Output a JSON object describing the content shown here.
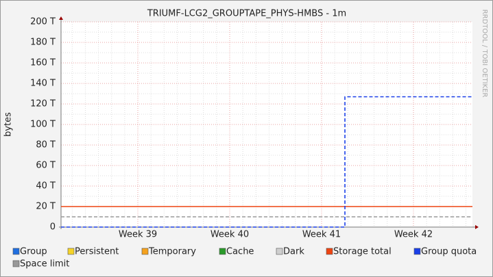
{
  "chart_data": {
    "type": "line",
    "title": "TRIUMF-LCG2_GROUPTAPE_PHYS-HMBS - 1m",
    "y_label": "bytes",
    "watermark": "RRDTOOL / TOBI OETIKER",
    "xlim": [
      38.164,
      42.642
    ],
    "xticks": [
      {
        "value": 39,
        "label": "Week 39"
      },
      {
        "value": 40,
        "label": "Week 40"
      },
      {
        "value": 41,
        "label": "Week 41"
      },
      {
        "value": 42,
        "label": "Week 42"
      }
    ],
    "ylim": [
      0,
      200000000000000
    ],
    "yticks": [
      0,
      {
        "value": 20000000000000,
        "label": "20 T"
      },
      {
        "value": 40000000000000,
        "label": "40 T"
      },
      {
        "value": 60000000000000,
        "label": "60 T"
      },
      {
        "value": 80000000000000,
        "label": "80 T"
      },
      {
        "value": 100000000000000,
        "label": "100 T"
      },
      {
        "value": 120000000000000,
        "label": "120 T"
      },
      {
        "value": 140000000000000,
        "label": "140 T"
      },
      {
        "value": 160000000000000,
        "label": "160 T"
      },
      {
        "value": 180000000000000,
        "label": "180 T"
      },
      {
        "value": 200000000000000,
        "label": "200 T"
      }
    ],
    "grid": true,
    "series": [
      {
        "name": "Group",
        "color": "#1f6fe0"
      },
      {
        "name": "Persistent",
        "color": "#f5d328"
      },
      {
        "name": "Temporary",
        "color": "#f5a21e"
      },
      {
        "name": "Cache",
        "color": "#2a9a2a"
      },
      {
        "name": "Dark",
        "color": "#cfcfcf"
      },
      {
        "name": "Storage total",
        "color": "#ee4411",
        "x": [
          38.164,
          42.642
        ],
        "values": [
          20000000000000,
          20000000000000
        ]
      },
      {
        "name": "Group quota",
        "color": "#1a3fe8",
        "dashed": true,
        "x": [
          38.164,
          41.254,
          41.254,
          42.642
        ],
        "values": [
          0,
          0,
          127000000000000,
          127000000000000
        ]
      },
      {
        "name": "Space limit",
        "color": "#999999",
        "dashed": true,
        "x": [
          38.164,
          42.642
        ],
        "values": [
          10000000000000,
          10000000000000
        ]
      }
    ]
  }
}
